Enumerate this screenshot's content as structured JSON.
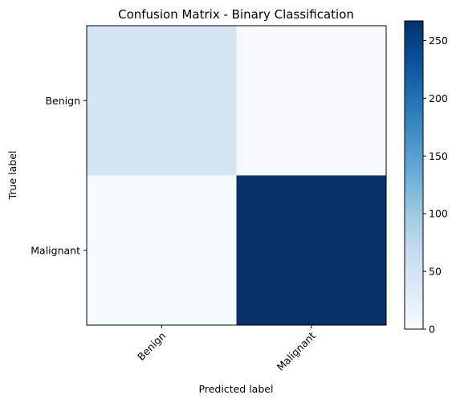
{
  "chart_data": {
    "type": "heatmap",
    "title": "Confusion Matrix - Binary Classification",
    "xlabel": "Predicted label",
    "ylabel": "True label",
    "x_categories": [
      "Benign",
      "Malignant"
    ],
    "y_categories": [
      "Benign",
      "Malignant"
    ],
    "values": [
      [
        45,
        2
      ],
      [
        3,
        267
      ]
    ],
    "colormap": "Blues",
    "color_range": [
      0,
      267
    ],
    "colorbar_ticks": [
      0,
      50,
      100,
      150,
      200,
      250
    ],
    "x_tick_rotation_deg": 45
  }
}
